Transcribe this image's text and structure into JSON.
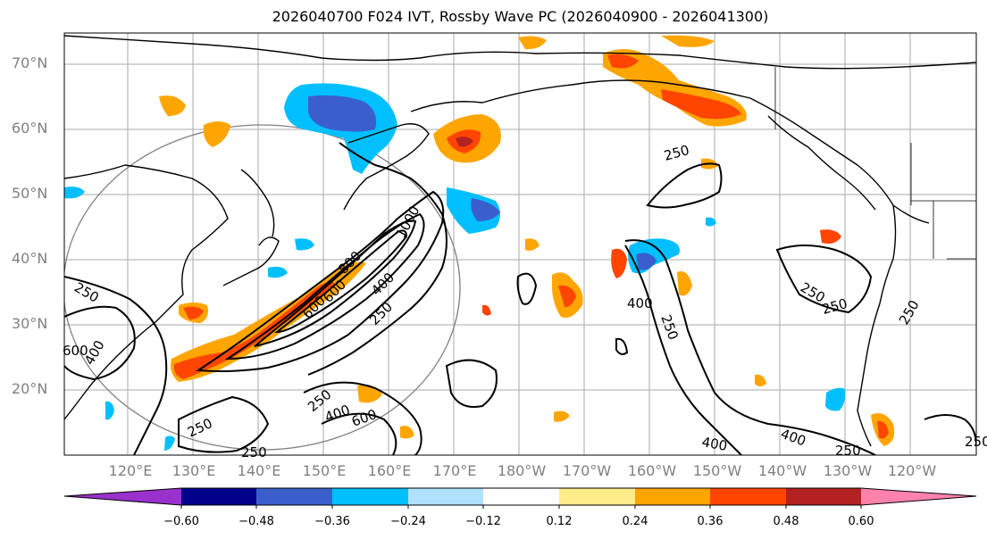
{
  "title": "2026040700 F024 IVT, Rossby Wave PC (2026040900 - 2026041300)",
  "latitude_labels": [
    "70°N",
    "60°N",
    "50°N",
    "40°N",
    "30°N",
    "20°N"
  ],
  "longitude_labels": [
    "120°E",
    "130°E",
    "140°E",
    "150°E",
    "160°E",
    "170°E",
    "180°W",
    "170°W",
    "160°W",
    "150°W",
    "140°W",
    "130°W",
    "120°W"
  ],
  "contour_labels": [
    "1000",
    "800",
    "600",
    "400",
    "250",
    "250",
    "250",
    "250",
    "250",
    "250",
    "250",
    "250",
    "250",
    "250",
    "250",
    "400",
    "400",
    "400",
    "400",
    "400",
    "600",
    "600",
    "600",
    "250"
  ],
  "colorbar": {
    "ticks": [
      "−0.60",
      "−0.48",
      "−0.36",
      "−0.24",
      "−0.12",
      "0.12",
      "0.24",
      "0.36",
      "0.48",
      "0.60"
    ],
    "colors": [
      "#9932cc",
      "#00008b",
      "#3a5fcd",
      "#00bfff",
      "#b0e2ff",
      "#ffffff",
      "#ffec8b",
      "#ffa500",
      "#ff4500",
      "#b22222",
      "#ff82ab"
    ]
  }
}
